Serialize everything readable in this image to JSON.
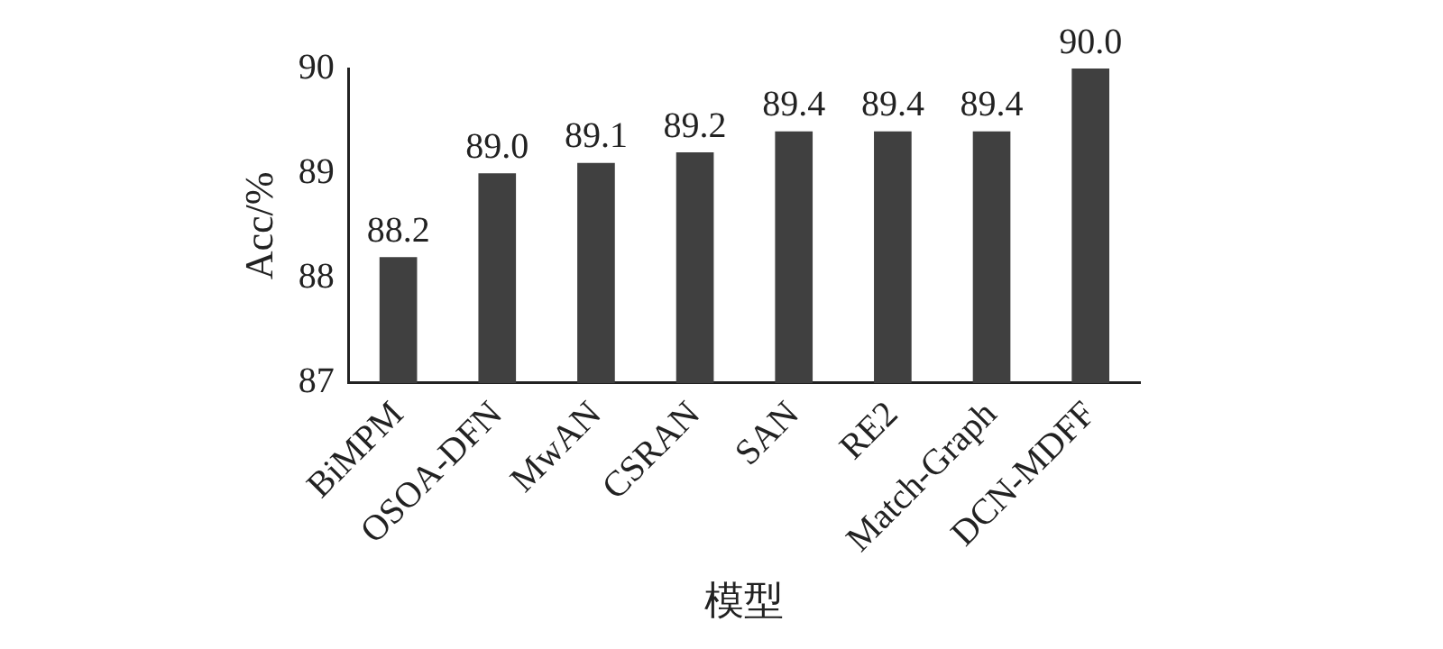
{
  "chart_data": {
    "type": "bar",
    "xlabel": "模型",
    "ylabel": "Acc/%",
    "categories": [
      "BiMPM",
      "OSOA-DFN",
      "MwAN",
      "CSRAN",
      "SAN",
      "RE2",
      "Match-Graph",
      "DCN-MDFF"
    ],
    "values": [
      88.2,
      89.0,
      89.1,
      89.2,
      89.4,
      89.4,
      89.4,
      90.0
    ],
    "value_labels": [
      "88.2",
      "89.0",
      "89.1",
      "89.2",
      "89.4",
      "89.4",
      "89.4",
      "90.0"
    ],
    "color": "#404040",
    "ylim": [
      87,
      90
    ],
    "yticks": [
      87,
      88,
      89,
      90
    ],
    "grid": false,
    "legend": false
  }
}
